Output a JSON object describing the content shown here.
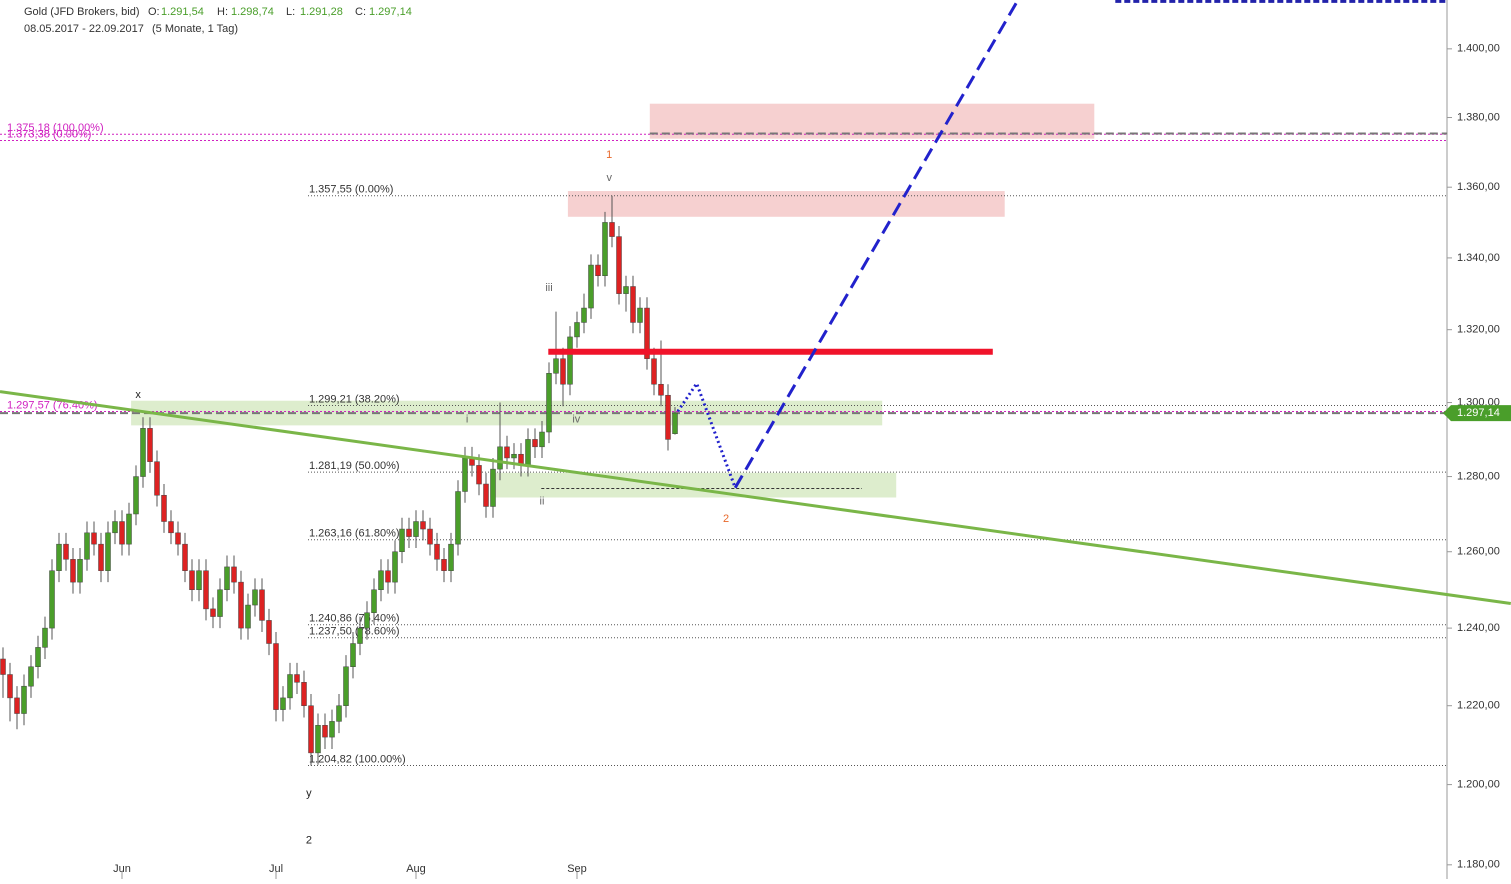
{
  "chart_data": {
    "type": "candlestick",
    "log_scale": true,
    "title": "Gold (JFD Brokers, bid)",
    "header_values": [
      {
        "label": "O:",
        "value": "1.291,54"
      },
      {
        "label": "H:",
        "value": "1.298,74"
      },
      {
        "label": "L:",
        "value": "1.291,28"
      },
      {
        "label": "C:",
        "value": "1.297,14"
      }
    ],
    "period": "08.05.2017 - 22.09.2017",
    "period_note": "(5 Monate, 1 Tag)",
    "up_color": "#4a9e2a",
    "down_color": "#d22",
    "ylim": [
      1176.5,
      1414.4
    ],
    "yticks": [
      {
        "value": 1400,
        "label": "1.400,00"
      },
      {
        "value": 1380,
        "label": "1.380,00"
      },
      {
        "value": 1360,
        "label": "1.360,00"
      },
      {
        "value": 1340,
        "label": "1.340,00"
      },
      {
        "value": 1320,
        "label": "1.320,00"
      },
      {
        "value": 1300,
        "label": "1.300,00"
      },
      {
        "value": 1280,
        "label": "1.280,00"
      },
      {
        "value": 1260,
        "label": "1.260,00"
      },
      {
        "value": 1240,
        "label": "1.240,00"
      },
      {
        "value": 1220,
        "label": "1.220,00"
      },
      {
        "value": 1200,
        "label": "1.200,00"
      },
      {
        "value": 1180,
        "label": "1.180,00"
      }
    ],
    "categories": [
      null,
      null,
      null,
      null,
      null,
      null,
      null,
      null,
      null,
      null,
      null,
      null,
      null,
      null,
      null,
      null,
      null,
      "Jun",
      null,
      null,
      null,
      null,
      null,
      null,
      null,
      null,
      null,
      null,
      null,
      null,
      null,
      null,
      null,
      null,
      null,
      null,
      null,
      null,
      null,
      "Jul",
      null,
      null,
      null,
      null,
      null,
      null,
      null,
      null,
      null,
      null,
      null,
      null,
      null,
      null,
      null,
      null,
      null,
      null,
      null,
      "Aug",
      null,
      null,
      null,
      null,
      null,
      null,
      null,
      null,
      null,
      null,
      null,
      null,
      null,
      null,
      null,
      null,
      null,
      null,
      null,
      null,
      null,
      null,
      "Sep",
      null,
      null,
      null,
      null,
      null,
      null,
      null,
      null,
      null,
      null,
      null,
      null,
      null,
      null
    ],
    "open": [
      1232,
      1228,
      1222,
      1218,
      1225,
      1230,
      1235,
      1240,
      1255,
      1262,
      1258,
      1252,
      1258,
      1265,
      1262,
      1255,
      1265,
      1268,
      1262,
      1270,
      1280,
      1293,
      1284,
      1275,
      1268,
      1265,
      1262,
      1255,
      1250,
      1255,
      1245,
      1243,
      1250,
      1256,
      1252,
      1240,
      1246,
      1250,
      1242,
      1236,
      1219,
      1222,
      1228,
      1226,
      1220,
      1208,
      1215,
      1212,
      1216,
      1220,
      1230,
      1236,
      1240,
      1244,
      1250,
      1255,
      1252,
      1260,
      1266,
      1264,
      1268,
      1266,
      1262,
      1258,
      1255,
      1262,
      1276,
      1285,
      1283,
      1278,
      1272,
      1282,
      1288,
      1285,
      1286,
      1283,
      1290,
      1288,
      1292,
      1308,
      1312,
      1305,
      1318,
      1322,
      1326,
      1338,
      1335,
      1350,
      1346,
      1330,
      1332,
      1322,
      1326,
      1312,
      1305,
      1302,
      1291.54
    ],
    "high": [
      1235,
      1231,
      1225,
      1228,
      1233,
      1238,
      1243,
      1258,
      1265,
      1265,
      1261,
      1261,
      1268,
      1268,
      1265,
      1268,
      1271,
      1271,
      1273,
      1283,
      1296,
      1296,
      1287,
      1278,
      1271,
      1268,
      1265,
      1258,
      1258,
      1258,
      1248,
      1253,
      1259,
      1259,
      1255,
      1249,
      1253,
      1253,
      1245,
      1239,
      1225,
      1231,
      1231,
      1229,
      1223,
      1218,
      1218,
      1219,
      1223,
      1233,
      1239,
      1243,
      1247,
      1253,
      1258,
      1258,
      1263,
      1269,
      1269,
      1271,
      1271,
      1269,
      1265,
      1261,
      1265,
      1279,
      1288,
      1288,
      1286,
      1281,
      1285,
      1300,
      1291,
      1289,
      1289,
      1293,
      1293,
      1295,
      1311,
      1325,
      1315,
      1321,
      1325,
      1330,
      1341,
      1341,
      1353,
      1357.55,
      1349,
      1335,
      1335,
      1329,
      1329,
      1315,
      1317,
      1305,
      1298.74
    ],
    "low": [
      1222,
      1216,
      1214,
      1215,
      1222,
      1227,
      1232,
      1237,
      1252,
      1255,
      1249,
      1249,
      1255,
      1259,
      1252,
      1252,
      1262,
      1259,
      1259,
      1267,
      1277,
      1281,
      1272,
      1265,
      1262,
      1259,
      1252,
      1247,
      1247,
      1242,
      1240,
      1240,
      1247,
      1249,
      1237,
      1237,
      1243,
      1239,
      1233,
      1216,
      1216,
      1219,
      1223,
      1217,
      1204.82,
      1205,
      1209,
      1209,
      1213,
      1217,
      1227,
      1233,
      1237,
      1241,
      1247,
      1249,
      1249,
      1257,
      1261,
      1261,
      1263,
      1259,
      1255,
      1252,
      1252,
      1259,
      1273,
      1280,
      1275,
      1269,
      1269,
      1279,
      1282,
      1282,
      1280,
      1280,
      1285,
      1285,
      1289,
      1305,
      1299,
      1302,
      1315,
      1319,
      1323,
      1332,
      1332,
      1343,
      1327,
      1325,
      1319,
      1319,
      1309,
      1302,
      1299,
      1287,
      1291.28
    ],
    "close": [
      1228,
      1222,
      1218,
      1225,
      1230,
      1235,
      1240,
      1255,
      1262,
      1258,
      1252,
      1258,
      1265,
      1262,
      1255,
      1265,
      1268,
      1262,
      1270,
      1280,
      1293,
      1284,
      1275,
      1268,
      1265,
      1262,
      1255,
      1250,
      1255,
      1245,
      1243,
      1250,
      1256,
      1252,
      1240,
      1246,
      1250,
      1242,
      1236,
      1219,
      1222,
      1228,
      1226,
      1220,
      1208,
      1215,
      1212,
      1216,
      1220,
      1230,
      1236,
      1240,
      1244,
      1250,
      1255,
      1252,
      1260,
      1266,
      1264,
      1268,
      1266,
      1262,
      1258,
      1255,
      1262,
      1276,
      1285,
      1283,
      1278,
      1272,
      1282,
      1288,
      1285,
      1286,
      1283,
      1290,
      1288,
      1292,
      1308,
      1312,
      1305,
      1318,
      1322,
      1326,
      1338,
      1335,
      1350,
      1346,
      1330,
      1332,
      1322,
      1326,
      1312,
      1305,
      1302,
      1290,
      1297.14
    ],
    "fib_levels": [
      {
        "value": 1357.55,
        "label": "1.357,55 (0.00%)"
      },
      {
        "value": 1299.21,
        "label": "1.299,21 (38.20%)"
      },
      {
        "value": 1281.19,
        "label": "1.281,19 (50.00%)"
      },
      {
        "value": 1263.16,
        "label": "1.263,16 (61.80%)"
      },
      {
        "value": 1240.86,
        "label": "1.240,86 (76.40%)"
      },
      {
        "value": 1237.5,
        "label": "1.237,50 (78.60%)"
      },
      {
        "value": 1204.82,
        "label": "1.204,82 (100.00%)"
      }
    ],
    "pink_levels": [
      {
        "value": 1375.18,
        "label": "1.375,18 (100.00%)"
      },
      {
        "value": 1373.38,
        "label": "1.373,38 (0.00%)"
      },
      {
        "value": 1297.57,
        "label": "1.297,57 (76.40%)"
      }
    ],
    "last_price": {
      "value": 1297.14,
      "label": "1.297,14"
    },
    "zones": [
      {
        "x": [
          92.4,
          155.9
        ],
        "y": [
          1373.9,
          1384.0
        ],
        "color": "#f4c4c4"
      },
      {
        "x": [
          80.7,
          143.1
        ],
        "y": [
          1351.6,
          1358.9
        ],
        "color": "#f4c4c4"
      },
      {
        "x": [
          18.3,
          125.6
        ],
        "y": [
          1293.8,
          1300.5
        ],
        "color": "#d4e9c0"
      },
      {
        "x": [
          69.6,
          127.6
        ],
        "y": [
          1274.4,
          1281.0
        ],
        "color": "#d4e9c0"
      }
    ],
    "resistance": {
      "x": [
        77.9,
        141.4
      ],
      "value": 1313.9,
      "color": "#f0132a"
    },
    "resistance_dash": {
      "x": [
        92.4,
        206.3
      ],
      "value": 1375.4
    },
    "trendline": {
      "x": [
        -0.43,
        215.4
      ],
      "y": [
        1303.0,
        1246.4
      ],
      "color": "#7ab648"
    },
    "projection_dotted": {
      "x": [
        96.4,
        99.1,
        104.6
      ],
      "y": [
        1297.6,
        1305.2,
        1277.0
      ],
      "color": "#2222cc"
    },
    "projection_dashed": {
      "x": [
        104.6,
        145
      ],
      "y": [
        1277.0,
        1414.4
      ],
      "color": "#2222cc"
    },
    "target_dash": {
      "x": [
        158.9,
        206.3
      ],
      "value": 1414
    },
    "support_dash": {
      "x": [
        76.9,
        122.7
      ],
      "value": 1276.8
    },
    "annotations": [
      {
        "text": "x",
        "x": 19.3,
        "y": 1302,
        "color": "#222"
      },
      {
        "text": "1",
        "x": 86.6,
        "y": 1369.2,
        "color": "#e8682a"
      },
      {
        "text": "v",
        "x": 86.6,
        "y": 1362.6,
        "color": "#666"
      },
      {
        "text": "iii",
        "x": 78,
        "y": 1331.6,
        "color": "#666"
      },
      {
        "text": "i",
        "x": 66.3,
        "y": 1295.4,
        "color": "#666"
      },
      {
        "text": "iv",
        "x": 81.9,
        "y": 1295.4,
        "color": "#666"
      },
      {
        "text": "ii",
        "x": 77,
        "y": 1273.3,
        "color": "#666"
      },
      {
        "text": "2",
        "x": 103.3,
        "y": 1268.7,
        "color": "#e8682a"
      },
      {
        "text": "y",
        "x": 43.7,
        "y": 1197.7,
        "color": "#222"
      },
      {
        "text": "2",
        "x": 43.7,
        "y": 1186,
        "color": "#222"
      }
    ]
  }
}
